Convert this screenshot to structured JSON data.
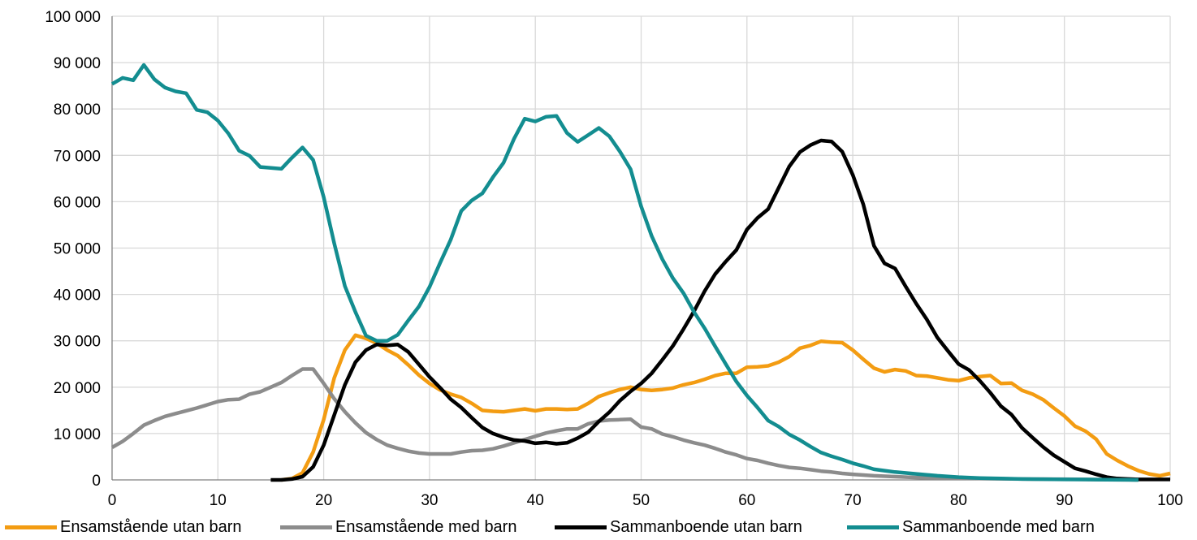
{
  "chart_data": {
    "type": "line",
    "xlim": [
      0,
      100
    ],
    "ylim": [
      0,
      100000
    ],
    "x_ticks": [
      0,
      10,
      20,
      30,
      40,
      50,
      60,
      70,
      80,
      90,
      100
    ],
    "y_ticks": [
      0,
      10000,
      20000,
      30000,
      40000,
      50000,
      60000,
      70000,
      80000,
      90000,
      100000
    ],
    "x_tick_labels": [
      "0",
      "10",
      "20",
      "30",
      "40",
      "50",
      "60",
      "70",
      "80",
      "90",
      "100"
    ],
    "y_tick_labels": [
      "0",
      "10 000",
      "20 000",
      "30 000",
      "40 000",
      "50 000",
      "60 000",
      "70 000",
      "80 000",
      "90 000",
      "100 000"
    ],
    "grid": true,
    "legend_position": "bottom",
    "series": [
      {
        "name": "Ensamstående utan barn",
        "color": "#F39C12",
        "x": [
          16,
          17,
          18,
          19,
          20,
          21,
          22,
          23,
          24,
          25,
          26,
          27,
          28,
          29,
          30,
          31,
          32,
          33,
          34,
          35,
          36,
          37,
          38,
          39,
          40,
          41,
          42,
          43,
          44,
          45,
          46,
          47,
          48,
          49,
          50,
          51,
          52,
          53,
          54,
          55,
          56,
          57,
          58,
          59,
          60,
          61,
          62,
          63,
          64,
          65,
          66,
          67,
          68,
          69,
          70,
          71,
          72,
          73,
          74,
          75,
          76,
          77,
          78,
          79,
          80,
          81,
          82,
          83,
          84,
          85,
          86,
          87,
          88,
          89,
          90,
          91,
          92,
          93,
          94,
          95,
          96,
          97,
          98,
          99,
          100
        ],
        "values": [
          0,
          300,
          1500,
          6000,
          13000,
          22000,
          28000,
          31200,
          30500,
          29500,
          28000,
          26800,
          24800,
          22600,
          20800,
          19400,
          18500,
          17800,
          16500,
          15000,
          14800,
          14700,
          15000,
          15300,
          14900,
          15300,
          15300,
          15200,
          15300,
          16500,
          18000,
          18800,
          19500,
          20000,
          19500,
          19300,
          19500,
          19800,
          20500,
          21000,
          21700,
          22500,
          23000,
          23000,
          24300,
          24400,
          24600,
          25400,
          26600,
          28400,
          29000,
          29900,
          29700,
          29600,
          28000,
          26000,
          24100,
          23300,
          23800,
          23500,
          22500,
          22400,
          22000,
          21600,
          21400,
          22000,
          22300,
          22500,
          20800,
          20900,
          19300,
          18500,
          17300,
          15500,
          13800,
          11600,
          10500,
          8800,
          5600,
          4200,
          3000,
          2000,
          1300,
          900,
          1400
        ]
      },
      {
        "name": "Ensamstående med barn",
        "color": "#8C8C8C",
        "x": [
          0,
          1,
          2,
          3,
          4,
          5,
          6,
          7,
          8,
          9,
          10,
          11,
          12,
          13,
          14,
          15,
          16,
          17,
          18,
          19,
          20,
          21,
          22,
          23,
          24,
          25,
          26,
          27,
          28,
          29,
          30,
          31,
          32,
          33,
          34,
          35,
          36,
          37,
          38,
          39,
          40,
          41,
          42,
          43,
          44,
          45,
          46,
          47,
          48,
          49,
          50,
          51,
          52,
          53,
          54,
          55,
          56,
          57,
          58,
          59,
          60,
          61,
          62,
          63,
          64,
          65,
          66,
          67,
          68,
          69,
          70,
          72,
          74,
          76,
          78,
          80,
          82,
          84,
          86,
          88,
          90,
          92,
          94,
          96,
          97
        ],
        "values": [
          7000,
          8300,
          10000,
          11800,
          12800,
          13700,
          14300,
          14900,
          15500,
          16200,
          16900,
          17300,
          17400,
          18500,
          19000,
          20000,
          21000,
          22500,
          23900,
          23900,
          20800,
          17500,
          14700,
          12300,
          10200,
          8700,
          7500,
          6800,
          6200,
          5800,
          5600,
          5600,
          5600,
          6000,
          6300,
          6400,
          6700,
          7300,
          8000,
          8700,
          9400,
          10100,
          10600,
          11000,
          11000,
          12100,
          12700,
          12900,
          13000,
          13100,
          11400,
          11000,
          9900,
          9300,
          8600,
          8000,
          7500,
          6800,
          6000,
          5400,
          4600,
          4200,
          3600,
          3100,
          2700,
          2500,
          2200,
          1900,
          1700,
          1400,
          1200,
          900,
          700,
          500,
          400,
          350,
          300,
          250,
          200,
          180,
          150,
          100,
          50,
          20,
          0
        ]
      },
      {
        "name": "Sammanboende utan barn",
        "color": "#000000",
        "x": [
          15,
          16,
          17,
          18,
          19,
          20,
          21,
          22,
          23,
          24,
          25,
          26,
          27,
          28,
          29,
          30,
          31,
          32,
          33,
          34,
          35,
          36,
          37,
          38,
          39,
          40,
          41,
          42,
          43,
          44,
          45,
          46,
          47,
          48,
          49,
          50,
          51,
          52,
          53,
          54,
          55,
          56,
          57,
          58,
          59,
          60,
          61,
          62,
          63,
          64,
          65,
          66,
          67,
          68,
          69,
          70,
          71,
          72,
          73,
          74,
          75,
          76,
          77,
          78,
          79,
          80,
          81,
          82,
          83,
          84,
          85,
          86,
          87,
          88,
          89,
          90,
          91,
          92,
          93,
          94,
          95,
          96,
          97,
          98,
          99,
          100
        ],
        "values": [
          0,
          0,
          200,
          700,
          2800,
          7500,
          14000,
          20500,
          25400,
          28000,
          29200,
          29000,
          29200,
          27600,
          24900,
          22200,
          19900,
          17400,
          15600,
          13400,
          11300,
          10000,
          9200,
          8600,
          8400,
          7900,
          8100,
          7800,
          8000,
          9000,
          10300,
          12600,
          14600,
          17100,
          19100,
          20800,
          23000,
          25900,
          28900,
          32500,
          36400,
          40700,
          44400,
          47100,
          49600,
          54000,
          56500,
          58400,
          63000,
          67600,
          70700,
          72200,
          73200,
          73000,
          70800,
          65800,
          59400,
          50500,
          46700,
          45600,
          41700,
          38000,
          34600,
          30700,
          27800,
          25000,
          23700,
          21400,
          18800,
          15900,
          14100,
          11200,
          9100,
          7100,
          5300,
          3900,
          2500,
          1900,
          1200,
          600,
          300,
          200,
          100,
          100,
          100,
          100
        ]
      },
      {
        "name": "Sammanboende med barn",
        "color": "#138D90",
        "x": [
          0,
          1,
          2,
          3,
          4,
          5,
          6,
          7,
          8,
          9,
          10,
          11,
          12,
          13,
          14,
          15,
          16,
          17,
          18,
          19,
          20,
          21,
          22,
          23,
          24,
          25,
          26,
          27,
          28,
          29,
          30,
          31,
          32,
          33,
          34,
          35,
          36,
          37,
          38,
          39,
          40,
          41,
          42,
          43,
          44,
          45,
          46,
          47,
          48,
          49,
          50,
          51,
          52,
          53,
          54,
          55,
          56,
          57,
          58,
          59,
          60,
          61,
          62,
          63,
          64,
          65,
          66,
          67,
          68,
          69,
          70,
          71,
          72,
          73,
          74,
          76,
          78,
          80,
          82,
          84,
          86,
          88,
          90,
          92,
          94,
          96,
          97
        ],
        "values": [
          85400,
          86700,
          86200,
          89500,
          86400,
          84600,
          83800,
          83400,
          79800,
          79300,
          77500,
          74700,
          71000,
          69900,
          67500,
          67300,
          67100,
          69500,
          71700,
          69000,
          61000,
          51000,
          41800,
          36200,
          31100,
          30000,
          30000,
          31300,
          34400,
          37400,
          41600,
          46800,
          51800,
          58000,
          60300,
          61800,
          65300,
          68400,
          73600,
          77900,
          77300,
          78300,
          78500,
          74800,
          72900,
          74400,
          75900,
          74100,
          70800,
          67000,
          59000,
          52600,
          47600,
          43500,
          40300,
          36200,
          32700,
          28800,
          25000,
          21200,
          18200,
          15600,
          12800,
          11500,
          9800,
          8600,
          7200,
          5900,
          5100,
          4400,
          3600,
          3000,
          2300,
          2000,
          1700,
          1300,
          900,
          600,
          400,
          300,
          200,
          150,
          100,
          80,
          50,
          20,
          0
        ]
      }
    ]
  }
}
